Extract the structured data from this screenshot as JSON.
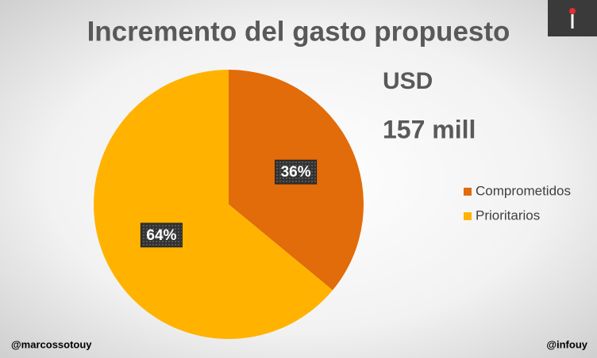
{
  "chart_data": {
    "type": "pie",
    "title": "Incremento del gasto propuesto",
    "categories": [
      "Comprometidos",
      "Prioritarios"
    ],
    "values": [
      36,
      64
    ],
    "value_labels": [
      "36%",
      "64%"
    ],
    "colors": [
      "#e26b0a",
      "#ffb300"
    ],
    "legend": "right",
    "annotations": [
      "USD",
      "157 mill",
      "@marcossotouy",
      "@infouy"
    ]
  }
}
